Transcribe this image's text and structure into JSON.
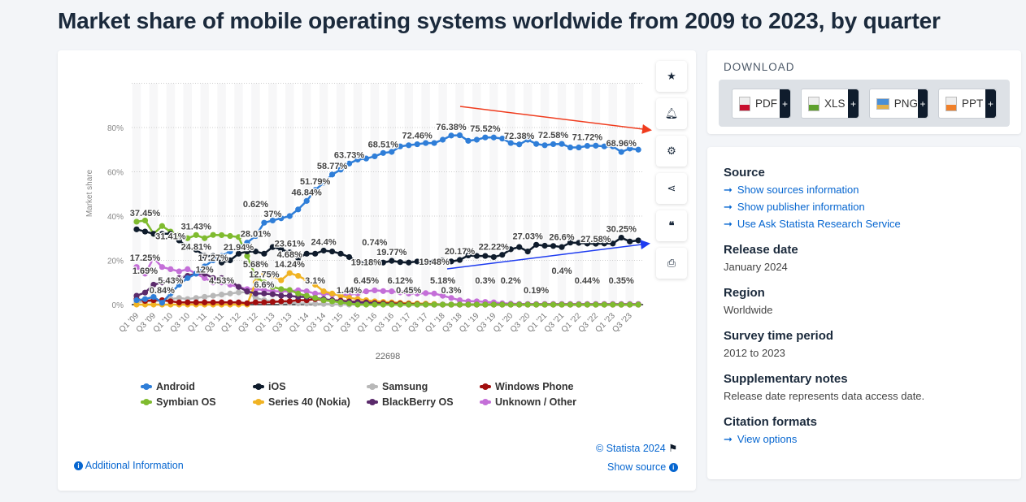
{
  "title": "Market share of mobile operating systems worldwide from 2009 to 2023, by quarter",
  "toolbar": [
    "star-icon",
    "bell-icon",
    "gear-icon",
    "share-icon",
    "quote-icon",
    "print-icon"
  ],
  "chart_data": {
    "type": "line",
    "title": "Market share of mobile operating systems worldwide from 2009 to 2023, by quarter",
    "ylabel": "Market share",
    "xlabel": "22698",
    "ylim": [
      0,
      100
    ],
    "yticks": [
      "0%",
      "20%",
      "40%",
      "60%",
      "80%"
    ],
    "xticks": [
      "Q1 '09",
      "Q3 '09",
      "Q1 '10",
      "Q3 '10",
      "Q1 '11",
      "Q3 '11",
      "Q1 '12",
      "Q3 '12",
      "Q1 '13",
      "Q3 '13",
      "Q1 '14",
      "Q3 '14",
      "Q1 '15",
      "Q3 '15",
      "Q1 '16",
      "Q3 '16",
      "Q1 '17",
      "Q3 '17",
      "Q1 '18",
      "Q3 '18",
      "Q1 '19",
      "Q3 '19",
      "Q1 '20",
      "Q3 '20",
      "Q1 '21",
      "Q3 '21",
      "Q1 '22",
      "Q3 '22",
      "Q1 '23",
      "Q3 '23"
    ],
    "series": [
      {
        "name": "Unknown / Other",
        "color": "#c46fd8",
        "values": [
          17,
          14,
          21,
          17,
          16,
          15,
          16,
          14,
          12,
          10,
          10,
          9,
          8,
          7,
          7,
          6.6,
          6,
          6,
          6,
          6.5,
          6,
          5,
          5,
          4.5,
          4.5,
          4.5,
          5,
          6,
          6.45,
          6.12,
          6,
          5.5,
          5,
          5,
          5.18,
          5,
          4,
          3,
          2,
          1.5,
          1.5,
          1.2,
          1,
          0.6,
          0.4,
          0.3,
          0.3,
          0.3,
          0.3,
          0.3,
          0.3,
          0.3,
          0.3,
          0.3,
          0.3,
          0.3,
          0.3,
          0.3,
          0.3,
          0.3
        ]
      },
      {
        "name": "Samsung",
        "color": "#b8b8b8",
        "values": [
          1,
          1.5,
          1.5,
          2,
          2.5,
          3,
          2.5,
          3,
          3.5,
          4,
          4.53,
          5,
          5.5,
          5.68,
          3,
          2,
          1.5,
          1,
          0.8,
          0.6,
          0.5,
          0.4,
          0.3,
          0.2,
          0.1,
          0,
          0,
          0,
          0,
          0,
          0,
          0,
          0,
          0,
          0,
          0,
          0,
          0,
          0,
          0,
          0,
          0,
          0,
          0,
          0,
          0,
          0,
          0,
          0,
          0,
          0,
          0,
          0,
          0,
          0,
          0,
          0,
          0,
          0,
          0
        ]
      },
      {
        "name": "Series 40 (Nokia)",
        "color": "#f0b323",
        "values": [
          0,
          0,
          0,
          0,
          0,
          0,
          0,
          0,
          0,
          0,
          0,
          0,
          0,
          0,
          10,
          14,
          13,
          11,
          14.24,
          13,
          11,
          9,
          6,
          5,
          4,
          3.1,
          2.5,
          2,
          1.5,
          1.2,
          1,
          0.8,
          0.6,
          0.5,
          0.4,
          0.3,
          0,
          0,
          0,
          0,
          0,
          0,
          0,
          0,
          0,
          0,
          0,
          0,
          0,
          0,
          0,
          0,
          0,
          0,
          0,
          0,
          0,
          0,
          0,
          0
        ]
      },
      {
        "name": "Windows Phone",
        "color": "#a10e0e",
        "values": [
          2.5,
          1.69,
          2,
          2,
          1.5,
          1,
          1,
          1,
          1,
          1,
          1,
          1,
          1,
          0.62,
          1,
          1,
          1.2,
          1.5,
          1.5,
          2,
          2,
          2.5,
          2,
          2,
          1.8,
          1.44,
          1.2,
          1,
          0.74,
          0.6,
          0.5,
          0.45,
          0.3,
          0.2,
          0.1,
          0,
          0,
          0,
          0,
          0,
          0,
          0,
          0,
          0,
          0,
          0,
          0,
          0,
          0,
          0,
          0,
          0,
          0,
          0,
          0,
          0,
          0,
          0,
          0,
          0
        ]
      },
      {
        "name": "BlackBerry OS",
        "color": "#5a2a6b",
        "values": [
          4,
          5.43,
          9,
          10,
          11,
          12,
          13,
          14,
          14,
          12,
          12,
          11,
          8,
          6,
          5,
          5,
          4.68,
          4,
          4,
          3.5,
          3.5,
          3,
          2.5,
          2,
          1.5,
          1.2,
          1,
          0.8,
          0.5,
          0.3,
          0.2,
          0.1,
          0,
          0,
          0,
          0,
          0,
          0,
          0,
          0,
          0,
          0,
          0,
          0,
          0,
          0,
          0,
          0,
          0,
          0,
          0,
          0,
          0,
          0,
          0,
          0,
          0,
          0,
          0,
          0
        ]
      },
      {
        "name": "Symbian OS",
        "color": "#7fbb2f",
        "values": [
          37.45,
          38,
          32,
          35.5,
          33,
          31.41,
          30,
          31.43,
          30,
          31.5,
          31.4,
          31,
          30.5,
          21.94,
          12.75,
          10,
          8,
          7,
          6.6,
          5,
          4,
          3,
          2,
          1.5,
          1,
          0.5,
          0,
          0,
          0,
          0,
          0,
          0,
          0,
          0,
          0,
          0,
          0,
          0,
          0,
          0,
          0,
          0,
          0,
          0,
          0,
          0,
          0,
          0,
          0,
          0,
          0,
          0,
          0,
          0,
          0,
          0,
          0,
          0,
          0,
          0
        ]
      },
      {
        "name": "iOS",
        "color": "#0f1c2c",
        "values": [
          34,
          33,
          32,
          32,
          32,
          29,
          26,
          24.81,
          22,
          22,
          19,
          20,
          23,
          24,
          24,
          23,
          26,
          25,
          23.61,
          21,
          23,
          23,
          24.4,
          24,
          23,
          21.5,
          19.5,
          18.7,
          19.18,
          19,
          19.77,
          19.2,
          19,
          19.48,
          19.3,
          19.5,
          20,
          19.5,
          20.17,
          22.22,
          22,
          22,
          21.5,
          22.5,
          25,
          26,
          24,
          27.03,
          26.6,
          26.5,
          26,
          28,
          27.9,
          27.58,
          27.5,
          27.6,
          27.6,
          30.25,
          28.5,
          29
        ]
      },
      {
        "name": "Android",
        "color": "#2f7ed8",
        "values": [
          2,
          2.5,
          3.5,
          0.84,
          5,
          9,
          12,
          14,
          17.27,
          20,
          22,
          24,
          26,
          28.01,
          31,
          37,
          38,
          39,
          40,
          43,
          46.84,
          51.79,
          55,
          58.77,
          61,
          63.73,
          65.5,
          66,
          67,
          68.51,
          69,
          71.5,
          72,
          72.46,
          73,
          73,
          74.5,
          76.38,
          76.5,
          74,
          74.5,
          75.52,
          75.5,
          75,
          73,
          72.38,
          74.5,
          72.58,
          72,
          72.5,
          72.6,
          71,
          71,
          71.72,
          71.8,
          71.5,
          71.5,
          68.96,
          70.5,
          70
        ]
      }
    ],
    "data_labels": [
      {
        "text": "37.45%",
        "idx": 1,
        "v": 37.45
      },
      {
        "text": "31.41%",
        "idx": 4,
        "v": 31.41
      },
      {
        "text": "31.43%",
        "idx": 7,
        "v": 31.43
      },
      {
        "text": "24.81%",
        "idx": 7,
        "v": 24.81
      },
      {
        "text": "17.27%",
        "idx": 9,
        "v": 17.27
      },
      {
        "text": "17.25%",
        "idx": 1,
        "v": 17.25
      },
      {
        "text": "12%",
        "idx": 8,
        "v": 12
      },
      {
        "text": "5.43%",
        "idx": 4,
        "v": 5.43
      },
      {
        "text": "1.69%",
        "idx": 1,
        "v": 1.69
      },
      {
        "text": "0.84%",
        "idx": 3,
        "v": 0.84
      },
      {
        "text": "4.53%",
        "idx": 10,
        "v": 4.53
      },
      {
        "text": "5.68%",
        "idx": 14,
        "v": 5.68
      },
      {
        "text": "0.62%",
        "idx": 14,
        "v": 0.62
      },
      {
        "text": "21.94%",
        "idx": 12,
        "v": 21.94
      },
      {
        "text": "28.01%",
        "idx": 14,
        "v": 28.01
      },
      {
        "text": "37%",
        "idx": 16,
        "v": 37
      },
      {
        "text": "12.75%",
        "idx": 15,
        "v": 12.75
      },
      {
        "text": "6.6%",
        "idx": 15,
        "v": 6.6
      },
      {
        "text": "23.61%",
        "idx": 18,
        "v": 23.61
      },
      {
        "text": "14.24%",
        "idx": 18,
        "v": 14.24
      },
      {
        "text": "4.68%",
        "idx": 18,
        "v": 4.68
      },
      {
        "text": "46.84%",
        "idx": 20,
        "v": 46.84
      },
      {
        "text": "51.79%",
        "idx": 21,
        "v": 51.79
      },
      {
        "text": "24.4%",
        "idx": 22,
        "v": 24.4
      },
      {
        "text": "3.1%",
        "idx": 21,
        "v": 3.1
      },
      {
        "text": "58.77%",
        "idx": 23,
        "v": 58.77
      },
      {
        "text": "63.73%",
        "idx": 25,
        "v": 63.73
      },
      {
        "text": "1.44%",
        "idx": 25,
        "v": 1.44
      },
      {
        "text": "6.45%",
        "idx": 27,
        "v": 6.45
      },
      {
        "text": "19.18%",
        "idx": 27,
        "v": 19.18
      },
      {
        "text": "0.74%",
        "idx": 28,
        "v": 0.74
      },
      {
        "text": "68.51%",
        "idx": 29,
        "v": 68.51
      },
      {
        "text": "19.77%",
        "idx": 30,
        "v": 19.77
      },
      {
        "text": "6.12%",
        "idx": 31,
        "v": 6.12
      },
      {
        "text": "72.46%",
        "idx": 33,
        "v": 72.46
      },
      {
        "text": "0.45%",
        "idx": 32,
        "v": 0.45
      },
      {
        "text": "19.48%",
        "idx": 35,
        "v": 19.48
      },
      {
        "text": "5.18%",
        "idx": 36,
        "v": 5.18
      },
      {
        "text": "76.38%",
        "idx": 37,
        "v": 76.38
      },
      {
        "text": "20.17%",
        "idx": 38,
        "v": 20.17
      },
      {
        "text": "0.3%",
        "idx": 37,
        "v": 0.3
      },
      {
        "text": "75.52%",
        "idx": 41,
        "v": 75.52
      },
      {
        "text": "22.22%",
        "idx": 42,
        "v": 22.22
      },
      {
        "text": "0.3%",
        "idx": 41,
        "v": 0.3
      },
      {
        "text": "0.2%",
        "idx": 44,
        "v": 0.2
      },
      {
        "text": "72.38%",
        "idx": 45,
        "v": 72.38
      },
      {
        "text": "27.03%",
        "idx": 46,
        "v": 27.03
      },
      {
        "text": "0.19%",
        "idx": 47,
        "v": 0.19
      },
      {
        "text": "72.58%",
        "idx": 49,
        "v": 72.58
      },
      {
        "text": "26.6%",
        "idx": 50,
        "v": 26.6
      },
      {
        "text": "0.4%",
        "idx": 50,
        "v": 0.4
      },
      {
        "text": "71.72%",
        "idx": 53,
        "v": 71.72
      },
      {
        "text": "27.58%",
        "idx": 54,
        "v": 27.58
      },
      {
        "text": "0.44%",
        "idx": 53,
        "v": 0.44
      },
      {
        "text": "68.96%",
        "idx": 57,
        "v": 68.96
      },
      {
        "text": "30.25%",
        "idx": 57,
        "v": 30.25
      },
      {
        "text": "0.35%",
        "idx": 57,
        "v": 0.35
      }
    ],
    "legend": [
      "Android",
      "iOS",
      "Samsung",
      "Windows Phone",
      "Symbian OS",
      "Series 40 (Nokia)",
      "BlackBerry OS",
      "Unknown / Other"
    ],
    "annotations": [
      {
        "type": "arrow",
        "color": "#f03c1e",
        "trend": "down"
      },
      {
        "type": "arrow",
        "color": "#1e3cf0",
        "trend": "up"
      }
    ]
  },
  "footer": {
    "copyright": "© Statista 2024",
    "additional": "Additional Information",
    "show_source": "Show source"
  },
  "download": {
    "title": "DOWNLOAD",
    "buttons": [
      "PDF",
      "XLS",
      "PNG",
      "PPT"
    ],
    "plus": "+"
  },
  "info": {
    "source_h": "Source",
    "links": [
      "Show sources information",
      "Show publisher information",
      "Use Ask Statista Research Service"
    ],
    "release_h": "Release date",
    "release": "January 2024",
    "region_h": "Region",
    "region": "Worldwide",
    "period_h": "Survey time period",
    "period": "2012 to 2023",
    "notes_h": "Supplementary notes",
    "notes": "Release date represents data access date.",
    "cite_h": "Citation formats",
    "cite_link": "View options"
  }
}
